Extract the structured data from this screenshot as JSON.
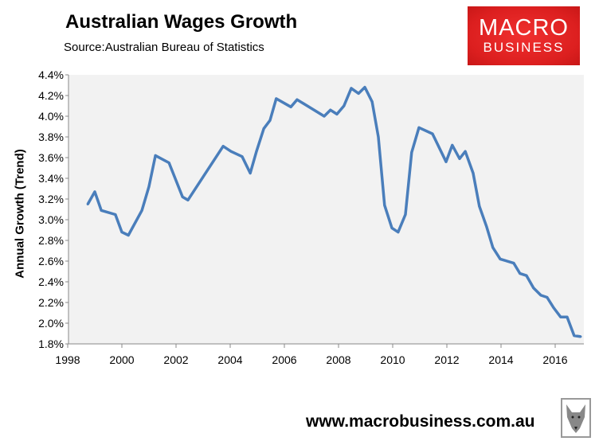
{
  "chart_data": {
    "type": "line",
    "title": "Australian Wages Growth",
    "subtitle": "Source:Australian Bureau of Statistics",
    "xlabel": "",
    "ylabel": "Annual Growth (Trend)",
    "xlim": [
      1998,
      2017
    ],
    "ylim": [
      1.8,
      4.4
    ],
    "grid": false,
    "x_ticks": [
      "1998",
      "2000",
      "2002",
      "2004",
      "2006",
      "2008",
      "2010",
      "2012",
      "2014",
      "2016"
    ],
    "y_ticks": [
      "1.8%",
      "2.0%",
      "2.2%",
      "2.4%",
      "2.6%",
      "2.8%",
      "3.0%",
      "3.2%",
      "3.4%",
      "3.6%",
      "3.8%",
      "4.0%",
      "4.2%",
      "4.4%"
    ],
    "line_color": "#4a7ebb",
    "plot_background": "#f2f2f2",
    "points": [
      [
        1998.74,
        3.15
      ],
      [
        1999.0,
        3.27
      ],
      [
        1999.24,
        3.09
      ],
      [
        1999.76,
        3.05
      ],
      [
        2000.0,
        2.88
      ],
      [
        2000.24,
        2.85
      ],
      [
        2000.74,
        3.09
      ],
      [
        2001.0,
        3.32
      ],
      [
        2001.24,
        3.62
      ],
      [
        2001.74,
        3.55
      ],
      [
        2002.24,
        3.22
      ],
      [
        2002.44,
        3.19
      ],
      [
        2003.74,
        3.71
      ],
      [
        2004.03,
        3.66
      ],
      [
        2004.44,
        3.61
      ],
      [
        2004.74,
        3.45
      ],
      [
        2004.97,
        3.66
      ],
      [
        2005.24,
        3.88
      ],
      [
        2005.47,
        3.96
      ],
      [
        2005.7,
        4.17
      ],
      [
        2006.24,
        4.09
      ],
      [
        2006.47,
        4.16
      ],
      [
        2007.47,
        4.0
      ],
      [
        2007.7,
        4.06
      ],
      [
        2007.94,
        4.02
      ],
      [
        2008.2,
        4.1
      ],
      [
        2008.47,
        4.27
      ],
      [
        2008.74,
        4.22
      ],
      [
        2008.97,
        4.28
      ],
      [
        2009.24,
        4.14
      ],
      [
        2009.47,
        3.8
      ],
      [
        2009.7,
        3.14
      ],
      [
        2009.97,
        2.92
      ],
      [
        2010.2,
        2.88
      ],
      [
        2010.47,
        3.05
      ],
      [
        2010.7,
        3.65
      ],
      [
        2010.97,
        3.89
      ],
      [
        2011.47,
        3.83
      ],
      [
        2011.97,
        3.56
      ],
      [
        2012.2,
        3.72
      ],
      [
        2012.47,
        3.59
      ],
      [
        2012.68,
        3.66
      ],
      [
        2012.97,
        3.45
      ],
      [
        2013.2,
        3.13
      ],
      [
        2013.47,
        2.93
      ],
      [
        2013.7,
        2.73
      ],
      [
        2013.97,
        2.62
      ],
      [
        2014.47,
        2.58
      ],
      [
        2014.7,
        2.48
      ],
      [
        2014.94,
        2.46
      ],
      [
        2015.2,
        2.34
      ],
      [
        2015.47,
        2.27
      ],
      [
        2015.7,
        2.25
      ],
      [
        2015.94,
        2.15
      ],
      [
        2016.2,
        2.06
      ],
      [
        2016.44,
        2.06
      ],
      [
        2016.7,
        1.88
      ],
      [
        2016.94,
        1.87
      ]
    ]
  },
  "logo": {
    "line1": "MACRO",
    "line2": "BUSINESS",
    "color": "#e02222"
  },
  "footer": {
    "url": "www.macrobusiness.com.au",
    "icon": "wolf-icon"
  }
}
